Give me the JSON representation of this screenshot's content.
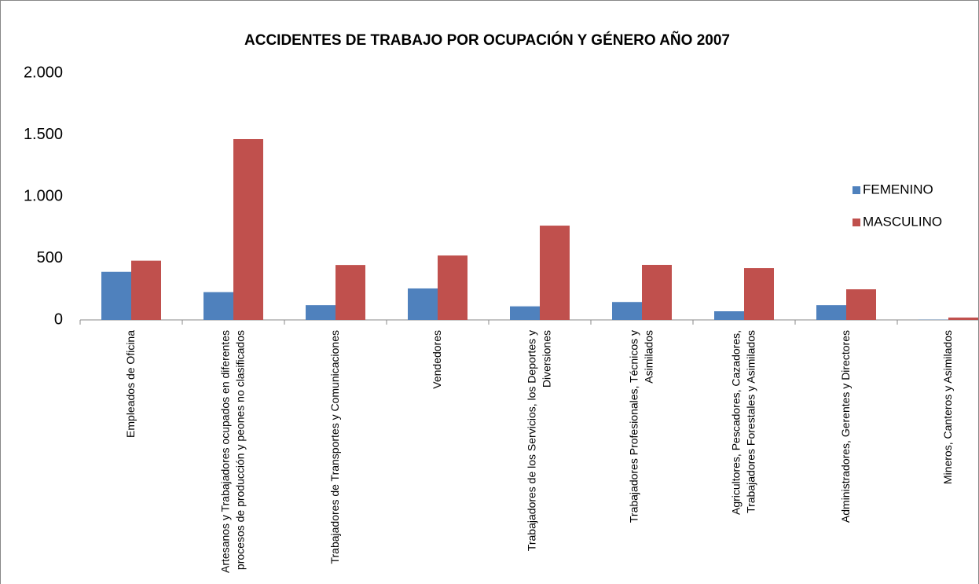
{
  "chart_data": {
    "type": "bar",
    "title": "ACCIDENTES DE TRABAJO POR OCUPACIÓN Y GÉNERO AÑO 2007",
    "categories": [
      "Empleados de Oficina",
      "Artesanos y Trabajadores ocupados en diferentes procesos de producción y peones no clasificados",
      "Trabajadores de Transportes y Comunicaciones",
      "Vendedores",
      "Trabajadores de los Servicios, los Deportes y Diversiones",
      "Trabajadores Profesionales, Técnicos y Asimilados",
      "Agricultores, Pescadores, Cazadores, Trabajadores Forestales y Asimilados",
      "Administradores, Gerentes y Directores",
      "Mineros, Canteros y Asimilados"
    ],
    "series": [
      {
        "name": "FEMENINO",
        "color": "#4f81bd",
        "values": [
          390,
          225,
          120,
          255,
          110,
          145,
          70,
          120,
          2
        ]
      },
      {
        "name": "MASCULINO",
        "color": "#c0504d",
        "values": [
          480,
          1465,
          445,
          522,
          764,
          446,
          420,
          248,
          19
        ]
      }
    ],
    "ylim": [
      0,
      2000
    ],
    "yticks": [
      0,
      500,
      {
        "value": 1000,
        "label": "1.000"
      },
      {
        "value": 1500,
        "label": "1.500"
      },
      {
        "value": 2000,
        "label": "2.000"
      }
    ],
    "grid": false,
    "legend": "right"
  }
}
